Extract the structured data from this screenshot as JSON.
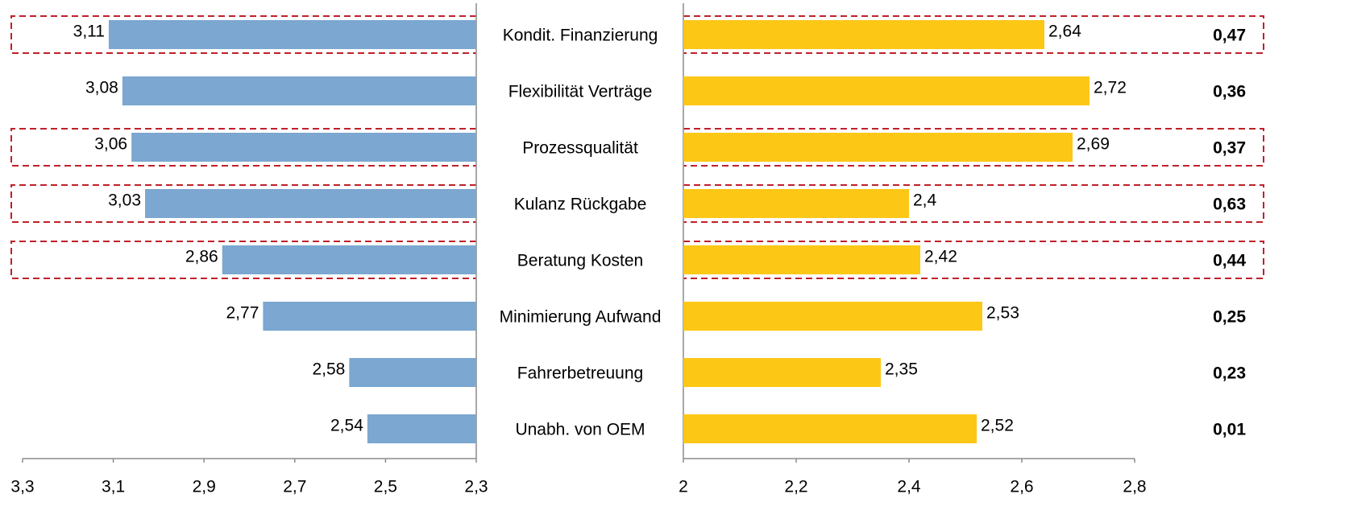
{
  "chart_data": {
    "type": "butterfly-bar",
    "categories": [
      "Kondit. Finanzierung",
      "Flexibilität Verträge",
      "Prozessqualität",
      "Kulanz Rückgabe",
      "Beratung Kosten",
      "Minimierung Aufwand",
      "Fahrerbetreuung",
      "Unabh. von OEM"
    ],
    "series": [
      {
        "color": "#7ba7d0",
        "axis": "x",
        "values": [
          3.11,
          3.08,
          3.06,
          3.03,
          2.86,
          2.77,
          2.58,
          2.54
        ],
        "value_labels": [
          "3,11",
          "3,08",
          "3,06",
          "3,03",
          "2,86",
          "2,77",
          "2,58",
          "2,54"
        ]
      },
      {
        "color": "#fdc716",
        "axis": "x2",
        "values": [
          2.64,
          2.72,
          2.69,
          2.4,
          2.42,
          2.53,
          2.35,
          2.52
        ],
        "value_labels": [
          "2,64",
          "2,72",
          "2,69",
          "2,4",
          "2,42",
          "2,53",
          "2,35",
          "2,52"
        ]
      }
    ],
    "differences": {
      "values": [
        0.47,
        0.36,
        0.37,
        0.63,
        0.44,
        0.25,
        0.23,
        0.01
      ],
      "value_labels": [
        "0,47",
        "0,36",
        "0,37",
        "0,63",
        "0,44",
        "0,25",
        "0,23",
        "0,01"
      ]
    },
    "highlight": [
      0,
      2,
      3,
      4
    ],
    "highlight_color": "#c0202a",
    "xlim": [
      3.3,
      2.3
    ],
    "xticks": [
      {
        "value": 3.3,
        "label": "3,3"
      },
      {
        "value": 3.1,
        "label": "3,1"
      },
      {
        "value": 2.9,
        "label": "2,9"
      },
      {
        "value": 2.7,
        "label": "2,7"
      },
      {
        "value": 2.5,
        "label": "2,5"
      },
      {
        "value": 2.3,
        "label": "2,3"
      }
    ],
    "x2lim": [
      2,
      2.8
    ],
    "x2ticks": [
      2,
      {
        "value": 2.2,
        "label": "2,2"
      },
      {
        "value": 2.4,
        "label": "2,4"
      },
      {
        "value": 2.6,
        "label": "2,6"
      },
      {
        "value": 2.8,
        "label": "2,8"
      }
    ]
  }
}
